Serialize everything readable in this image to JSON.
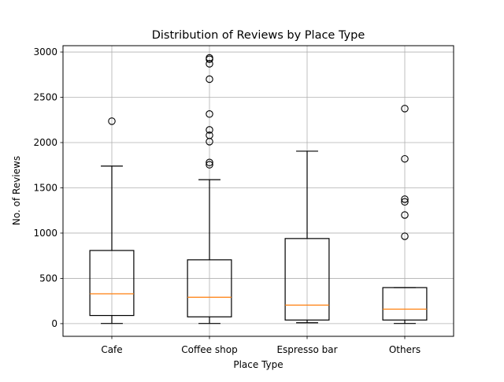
{
  "chart_data": {
    "type": "boxplot",
    "title": "Distribution of Reviews by Place Type",
    "xlabel": "Place Type",
    "ylabel": "No. of Reviews",
    "ylim": [
      -140,
      3070
    ],
    "yticks": [
      0,
      500,
      1000,
      1500,
      2000,
      2500,
      3000
    ],
    "grid": true,
    "categories": [
      "Cafe",
      "Coffee shop",
      "Espresso bar",
      "Others"
    ],
    "boxes": [
      {
        "category": "Cafe",
        "whisker_low": 2,
        "q1": 90,
        "median": 330,
        "q3": 808,
        "whisker_high": 1740,
        "outliers": [
          2236
        ]
      },
      {
        "category": "Coffee shop",
        "whisker_low": 2,
        "q1": 75,
        "median": 292,
        "q3": 705,
        "whisker_high": 1590,
        "outliers": [
          1755,
          1780,
          2010,
          2080,
          2140,
          2315,
          2700,
          2870,
          2920,
          2935
        ]
      },
      {
        "category": "Espresso bar",
        "whisker_low": 10,
        "q1": 40,
        "median": 205,
        "q3": 940,
        "whisker_high": 1905,
        "outliers": []
      },
      {
        "category": "Others",
        "whisker_low": 2,
        "q1": 40,
        "median": 160,
        "q3": 398,
        "whisker_high": 398,
        "outliers": [
          965,
          1200,
          1345,
          1375,
          1820,
          2375
        ]
      }
    ],
    "colors": {
      "box": "#000000",
      "median": "#ff7f0e",
      "grid": "#b0b0b0"
    }
  }
}
